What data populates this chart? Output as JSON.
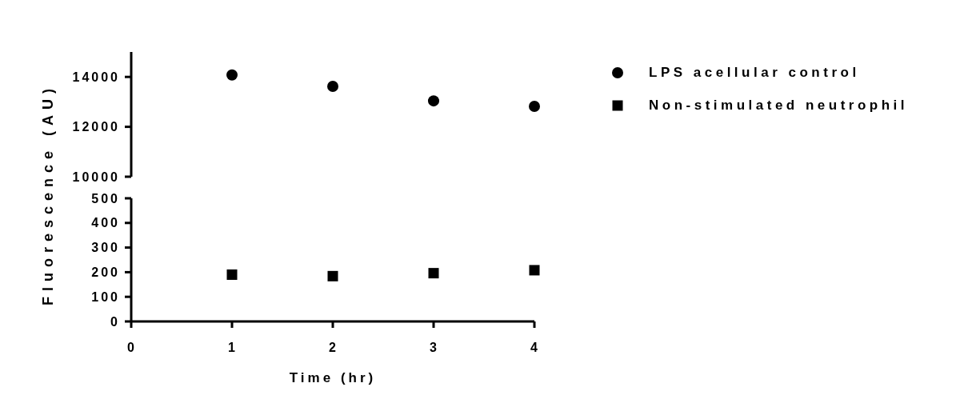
{
  "chart_data": [
    {
      "type": "scatter",
      "ylabel": "Fluorescence (AU)",
      "x": [
        1,
        2,
        3,
        4
      ],
      "xlim": [
        0,
        4
      ],
      "ylim": [
        10000,
        15000
      ],
      "yticks": [
        10000,
        12000,
        14000
      ],
      "tick_labels": "y",
      "marker": "circle",
      "legend": "right",
      "series": [
        {
          "name": "LPS acellular control",
          "color": "#000000",
          "values": [
            14080,
            13620,
            13040,
            12820
          ]
        }
      ]
    },
    {
      "type": "scatter",
      "xlabel": "Time (hr)",
      "x": [
        1,
        2,
        3,
        4
      ],
      "xlim": [
        0,
        4
      ],
      "xticks": [
        0,
        1,
        2,
        3,
        4
      ],
      "ylim": [
        0,
        500
      ],
      "yticks": [
        0,
        100,
        200,
        300,
        400,
        500
      ],
      "marker": "square",
      "legend": "right",
      "series": [
        {
          "name": "Non-stimulated neutrophil",
          "color": "#000000",
          "values": [
            190,
            184,
            196,
            208
          ]
        }
      ]
    }
  ]
}
